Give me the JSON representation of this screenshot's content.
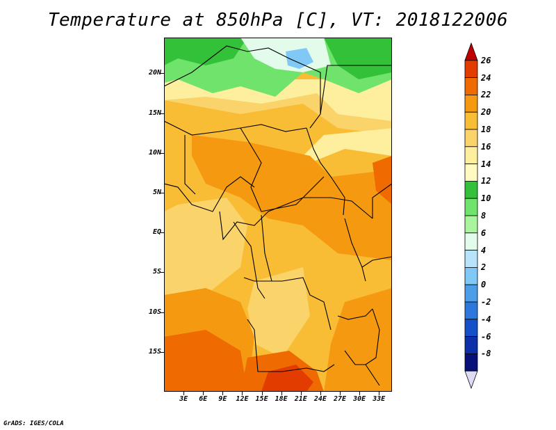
{
  "title": "Temperature at 850hPa [C], VT: 2018122006",
  "lat_labels": [
    {
      "text": "20N",
      "lat": 20
    },
    {
      "text": "15N",
      "lat": 15
    },
    {
      "text": "10N",
      "lat": 10
    },
    {
      "text": "5N",
      "lat": 5
    },
    {
      "text": "EQ",
      "lat": 0
    },
    {
      "text": "5S",
      "lat": -5
    },
    {
      "text": "10S",
      "lat": -10
    },
    {
      "text": "15S",
      "lat": -15
    }
  ],
  "lon_labels": [
    {
      "text": "3E",
      "lon": 3
    },
    {
      "text": "6E",
      "lon": 6
    },
    {
      "text": "9E",
      "lon": 9
    },
    {
      "text": "12E",
      "lon": 12
    },
    {
      "text": "15E",
      "lon": 15
    },
    {
      "text": "18E",
      "lon": 18
    },
    {
      "text": "21E",
      "lon": 21
    },
    {
      "text": "24E",
      "lon": 24
    },
    {
      "text": "27E",
      "lon": 27
    },
    {
      "text": "30E",
      "lon": 30
    },
    {
      "text": "33E",
      "lon": 33
    }
  ],
  "map_extent": {
    "lon_min": 0,
    "lon_max": 35,
    "lat_min": -20,
    "lat_max": 24.5
  },
  "legend": {
    "levels": [
      "26",
      "24",
      "22",
      "20",
      "18",
      "16",
      "14",
      "12",
      "10",
      "8",
      "6",
      "4",
      "2",
      "0",
      "-2",
      "-4",
      "-6",
      "-8"
    ],
    "colors": [
      "#c00000",
      "#e23c00",
      "#ef6a00",
      "#f59a10",
      "#f8bd35",
      "#fad36a",
      "#fdef9e",
      "#fffbc0",
      "#34c13a",
      "#6fe36b",
      "#a8f59d",
      "#e2fbea",
      "#b7e4fb",
      "#80c8f5",
      "#4d9ee9",
      "#2c78dc",
      "#1450c8",
      "#0c30a8",
      "#08107a",
      "#dcdcf5"
    ]
  },
  "credit": "GrADS: IGES/COLA"
}
